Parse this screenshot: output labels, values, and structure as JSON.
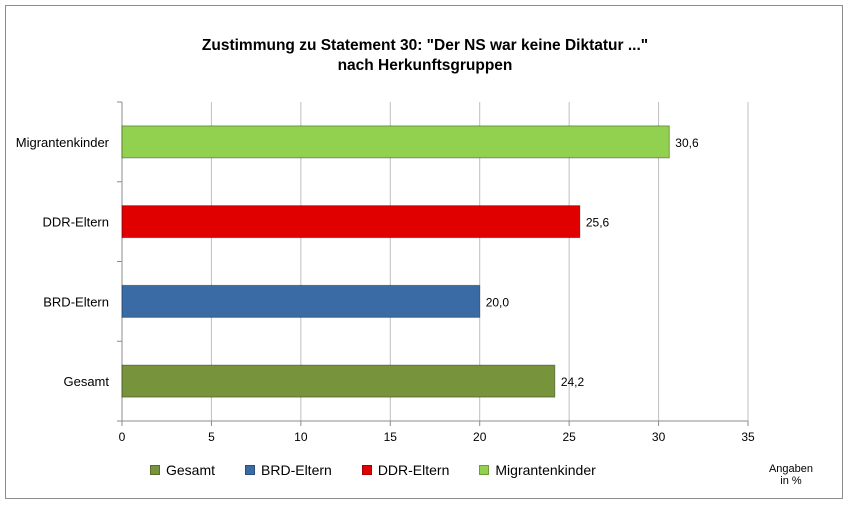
{
  "chart_data": {
    "type": "bar",
    "orientation": "horizontal",
    "title": "Zustimmung zu Statement 30: \"Der NS war keine Diktatur ...\"",
    "subtitle": "nach Herkunftsgruppen",
    "categories": [
      "Migrantenkinder",
      "DDR-Eltern",
      "BRD-Eltern",
      "Gesamt"
    ],
    "values": [
      30.6,
      25.6,
      20.0,
      24.2
    ],
    "value_labels": [
      "30,6",
      "25,6",
      "20,0",
      "24,2"
    ],
    "colors": [
      "#92d050",
      "#e00000",
      "#3a6ba5",
      "#77933c"
    ],
    "xlim": [
      0,
      35
    ],
    "xticks": [
      "0",
      "5",
      "10",
      "15",
      "20",
      "25",
      "30",
      "35"
    ],
    "grid": true,
    "legend": {
      "position": "bottom",
      "entries": [
        {
          "name": "Gesamt",
          "color": "#77933c"
        },
        {
          "name": "BRD-Eltern",
          "color": "#3a6ba5"
        },
        {
          "name": "DDR-Eltern",
          "color": "#e00000"
        },
        {
          "name": "Migrantenkinder",
          "color": "#92d050"
        }
      ]
    },
    "unit_label_line1": "Angaben",
    "unit_label_line2": "in %"
  }
}
